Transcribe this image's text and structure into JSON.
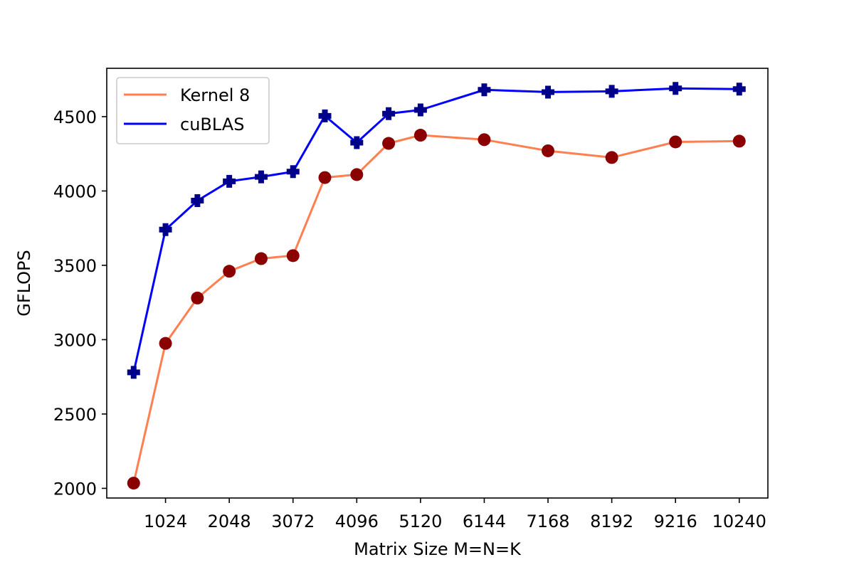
{
  "chart_data": {
    "type": "line",
    "title": "",
    "xlabel": "Matrix Size M=N=K",
    "ylabel": "GFLOPS",
    "x": [
      512,
      1024,
      1536,
      2048,
      2560,
      3072,
      3584,
      4096,
      4608,
      5120,
      6144,
      7168,
      8192,
      9216,
      10240
    ],
    "xticks": [
      1024,
      2048,
      3072,
      4096,
      5120,
      6144,
      7168,
      8192,
      9216,
      10240
    ],
    "yticks": [
      2000,
      2500,
      3000,
      3500,
      4000,
      4500
    ],
    "xlim": [
      80,
      10700
    ],
    "ylim": [
      1935,
      4825
    ],
    "grid": false,
    "legend_position": "top-left",
    "series": [
      {
        "name": "Kernel 8",
        "line_color": "#ff7f50",
        "marker_color": "#8b0000",
        "marker": "circle",
        "values": [
          2035,
          2975,
          3280,
          3460,
          3545,
          3565,
          4090,
          4110,
          4320,
          4375,
          4345,
          4270,
          4225,
          4330,
          4335
        ]
      },
      {
        "name": "cuBLAS",
        "line_color": "#0000ff",
        "marker_color": "#00008b",
        "marker": "plus",
        "values": [
          2780,
          3740,
          3935,
          4065,
          4095,
          4130,
          4505,
          4325,
          4520,
          4545,
          4680,
          4665,
          4670,
          4690,
          4685
        ]
      }
    ]
  }
}
